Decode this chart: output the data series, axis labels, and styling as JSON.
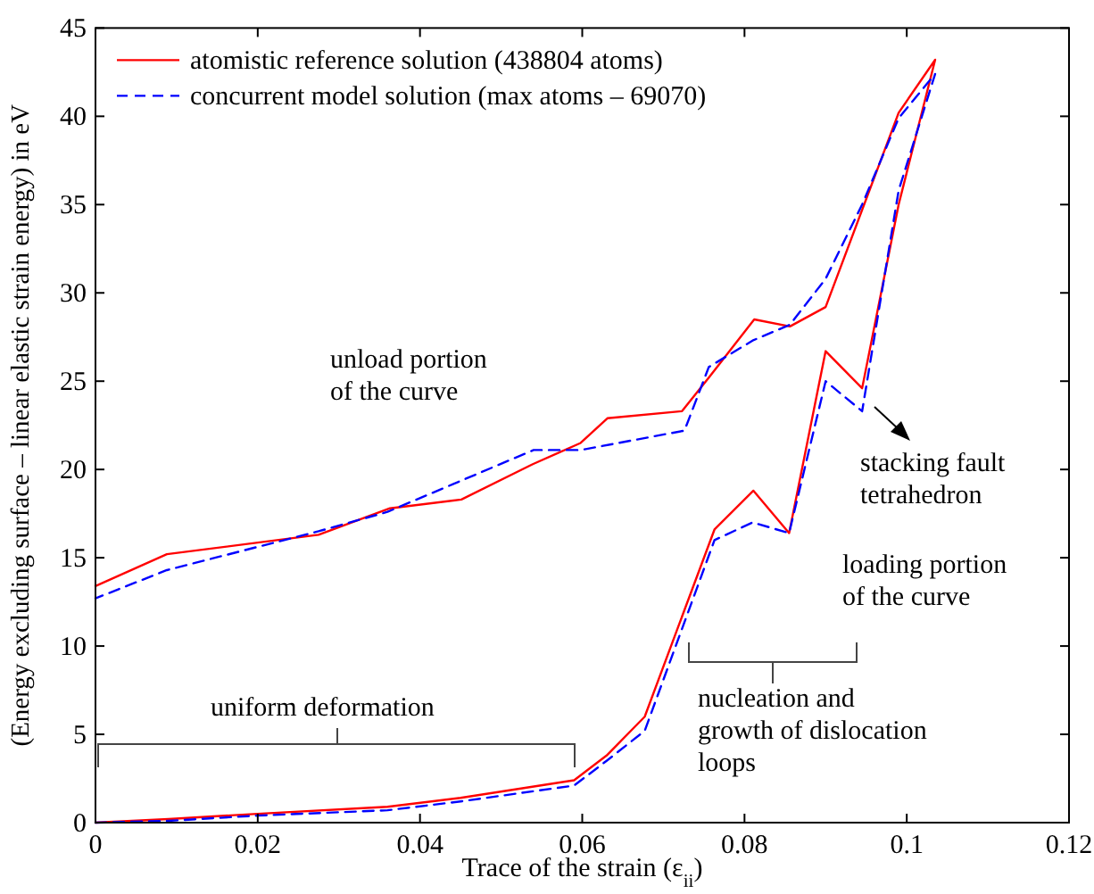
{
  "chart_data": {
    "type": "line",
    "xlabel": "Trace of the strain (ε$_{ii}$)",
    "ylabel": "(Energy excluding surface – linear elastic strain energy) in eV",
    "xlim": [
      0,
      0.12
    ],
    "ylim": [
      0,
      45
    ],
    "xticks": [
      0,
      0.02,
      0.04,
      0.06,
      0.08,
      0.1,
      0.12
    ],
    "yticks": [
      0,
      5,
      10,
      15,
      20,
      25,
      30,
      35,
      40,
      45
    ],
    "grid": false,
    "legend": "top left",
    "marker": "none",
    "series": [
      {
        "name": "atomistic reference solution (438804 atoms)",
        "color": "#ff0000",
        "line_style": "solid",
        "x": [
          0,
          0.009,
          0.02,
          0.036,
          0.045,
          0.059,
          0.063,
          0.0677,
          0.0763,
          0.0811,
          0.0855,
          0.09,
          0.0945,
          0.099,
          0.1035,
          0.099,
          0.09,
          0.0856,
          0.0812,
          0.0756,
          0.0723,
          0.0631,
          0.0598,
          0.0539,
          0.0451,
          0.0363,
          0.0275,
          0.0088,
          0
        ],
        "values": [
          0,
          0.2,
          0.5,
          0.9,
          1.4,
          2.4,
          3.8,
          6.0,
          16.6,
          18.8,
          16.4,
          26.7,
          24.6,
          35.0,
          43.2,
          40.2,
          29.2,
          28.1,
          28.5,
          25.2,
          23.3,
          22.9,
          21.5,
          20.3,
          18.3,
          17.8,
          16.3,
          15.2,
          13.4
        ]
      },
      {
        "name": "concurrent model solution (max atoms – 69070)",
        "color": "#0000ff",
        "line_style": "dashed",
        "x": [
          0,
          0.009,
          0.02,
          0.036,
          0.045,
          0.059,
          0.063,
          0.0677,
          0.0763,
          0.081,
          0.0855,
          0.09,
          0.0945,
          0.099,
          0.1035,
          0.099,
          0.0945,
          0.09,
          0.0856,
          0.081,
          0.0756,
          0.0726,
          0.0598,
          0.054,
          0.036,
          0.0275,
          0.0088,
          0
        ],
        "values": [
          0,
          0.1,
          0.4,
          0.7,
          1.2,
          2.1,
          3.5,
          5.2,
          16.0,
          17.0,
          16.4,
          25.0,
          23.3,
          35.8,
          42.4,
          39.9,
          35.0,
          30.8,
          28.2,
          27.3,
          25.8,
          22.2,
          21.1,
          21.1,
          17.6,
          16.5,
          14.3,
          12.7
        ]
      }
    ],
    "annotations": [
      "unload portion\nof the curve",
      "stacking fault\ntetrahedron",
      "loading portion\nof the curve",
      "nucleation and\ngrowth of dislocation\nloops",
      "uniform deformation"
    ]
  }
}
